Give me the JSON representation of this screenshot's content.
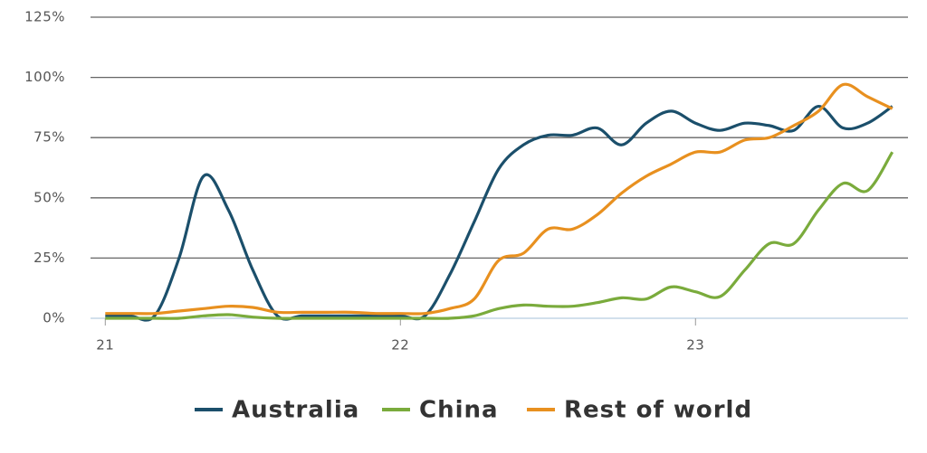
{
  "chart_data": {
    "type": "line",
    "x": [
      21,
      21.083,
      21.167,
      21.25,
      21.333,
      21.417,
      21.5,
      21.583,
      21.667,
      21.75,
      21.833,
      21.917,
      22,
      22.083,
      22.167,
      22.25,
      22.333,
      22.417,
      22.5,
      22.583,
      22.667,
      22.75,
      22.833,
      22.917,
      23,
      23.083,
      23.167,
      23.25,
      23.333,
      23.417,
      23.5,
      23.583,
      23.667
    ],
    "series": [
      {
        "name": "Australia",
        "color": "#1b4f6b",
        "values": [
          1,
          1,
          1,
          25,
          59,
          45,
          20,
          1,
          1,
          1,
          1,
          1,
          1,
          1,
          18,
          40,
          62,
          72,
          76,
          76,
          79,
          72,
          81,
          86,
          81,
          78,
          81,
          80,
          78,
          88,
          79,
          81,
          88
        ]
      },
      {
        "name": "China",
        "color": "#7aab3c",
        "values": [
          0,
          0,
          0,
          0,
          1,
          1.5,
          0.5,
          0,
          0,
          0,
          0,
          0,
          0,
          0,
          0,
          1,
          4,
          5.5,
          5,
          5,
          6.5,
          8.5,
          8,
          13,
          11,
          9,
          20,
          31,
          31,
          45,
          56,
          53,
          69
        ]
      },
      {
        "name": "Rest of world",
        "color": "#e8901f",
        "values": [
          2,
          2,
          2,
          3,
          4,
          5,
          4.5,
          2.5,
          2.5,
          2.5,
          2.5,
          2,
          2,
          2,
          4,
          8,
          24,
          27,
          37,
          37,
          43,
          52,
          59,
          64,
          69,
          69,
          74,
          75,
          80,
          86,
          97,
          92,
          87
        ]
      }
    ],
    "xlim": [
      20.95,
      23.72
    ],
    "xticks": [
      21,
      22,
      23
    ],
    "ylim": [
      0,
      125
    ],
    "yticks": [
      {
        "value": 0,
        "label": "0%"
      },
      {
        "value": 25,
        "label": "25%"
      },
      {
        "value": 50,
        "label": "50%"
      },
      {
        "value": 75,
        "label": "75%"
      },
      {
        "value": 100,
        "label": "100%"
      },
      {
        "value": 125,
        "label": "125%"
      }
    ],
    "grid": true
  }
}
